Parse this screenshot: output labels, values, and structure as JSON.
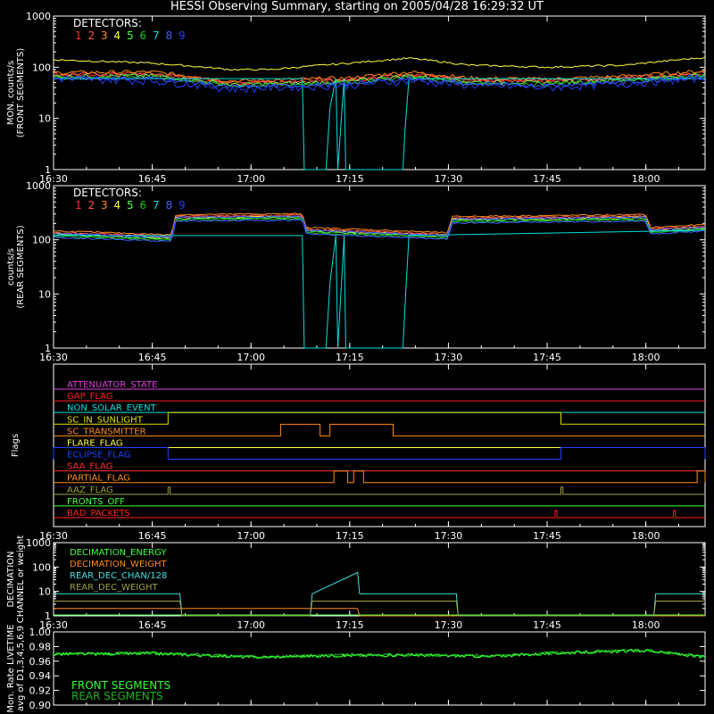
{
  "title": "HESSI Observing Summary, starting on 2005/04/28 16:29:32 UT",
  "colors": {
    "background": "#000000",
    "axes": "#ffffff",
    "det": [
      "#ff3030",
      "#ff5050",
      "#ff8c1a",
      "#ffff40",
      "#50ff50",
      "#20c020",
      "#00e0e0",
      "#4060ff",
      "#2040ff"
    ],
    "flags": {
      "attenuator": "#e040e0",
      "gap": "#ff2020",
      "non_solar": "#00e0e0",
      "sunlight": "#e0e000",
      "transmitter": "#ff8c1a",
      "flare": "#ffff40",
      "eclipse": "#2040ff",
      "saa": "#ff3030",
      "partial": "#ff8c1a",
      "aaz": "#a0a040",
      "fronts_off": "#40ff40",
      "bad_packets": "#ff2020"
    },
    "dec": {
      "energy": "#40ff40",
      "weight": "#ff8c1a",
      "rear_chan": "#40e0e0",
      "rear_weight": "#a0a040"
    },
    "livetime": {
      "front": "#30ff30",
      "rear": "#20b020"
    }
  },
  "chart_data": [
    {
      "id": "front",
      "type": "line",
      "ylabel": [
        "MON. counts/s",
        "(FRONT SEGMENTS)"
      ],
      "yscale": "log",
      "ylim": [
        1,
        1000
      ],
      "yticks": [
        "1",
        "10",
        "100",
        "1000"
      ],
      "xticks": [
        "16:30",
        "16:45",
        "17:00",
        "17:15",
        "17:30",
        "17:45",
        "18:00"
      ],
      "legend_title": "DETECTORS:",
      "legend_items": [
        "1",
        "2",
        "3",
        "4",
        "5",
        "6",
        "7",
        "8",
        "9"
      ],
      "series": [
        {
          "name": "1",
          "x": [
            16.5,
            16.75,
            16.95,
            17.05,
            17.25,
            17.4,
            17.55,
            17.75,
            17.95,
            18.15
          ],
          "y": [
            70,
            72,
            48,
            50,
            55,
            72,
            55,
            52,
            60,
            75
          ]
        },
        {
          "name": "4",
          "x": [
            16.5,
            16.75,
            16.95,
            17.05,
            17.25,
            17.4,
            17.55,
            17.75,
            17.95,
            18.15
          ],
          "y": [
            140,
            120,
            90,
            90,
            120,
            150,
            110,
            100,
            110,
            155
          ]
        },
        {
          "name": "7",
          "x": [
            16.5,
            17.13,
            17.135,
            17.19,
            17.2,
            17.215,
            17.22,
            17.236,
            17.24,
            17.385,
            17.39,
            17.4,
            18.15
          ],
          "y": [
            60,
            60,
            1,
            1,
            16,
            60,
            1,
            60,
            1,
            1,
            6,
            60,
            60
          ]
        },
        {
          "name": "9",
          "x": [
            16.5,
            16.75,
            16.95,
            17.05,
            17.25,
            17.4,
            17.55,
            17.75,
            17.95,
            18.15
          ],
          "y": [
            60,
            55,
            38,
            40,
            45,
            55,
            45,
            40,
            48,
            62
          ]
        }
      ]
    },
    {
      "id": "rear",
      "type": "line",
      "ylabel": [
        "counts/s",
        "(REAR SEGMENTS)"
      ],
      "yscale": "log",
      "ylim": [
        1,
        1000
      ],
      "yticks": [
        "1",
        "10",
        "100",
        "1000"
      ],
      "xticks": [
        "16:30",
        "16:45",
        "17:00",
        "17:15",
        "17:30",
        "17:45",
        "18:00"
      ],
      "legend_title": "DETECTORS:",
      "legend_items": [
        "1",
        "2",
        "3",
        "4",
        "5",
        "6",
        "7",
        "8",
        "9"
      ],
      "series": [
        {
          "name": "1",
          "x": [
            16.5,
            16.8,
            16.81,
            17.13,
            17.14,
            17.5,
            17.51,
            18.0,
            18.01,
            18.15
          ],
          "y": [
            130,
            110,
            260,
            270,
            150,
            120,
            240,
            260,
            150,
            170
          ]
        },
        {
          "name": "7",
          "x": [
            16.5,
            17.13,
            17.135,
            17.19,
            17.2,
            17.215,
            17.22,
            17.236,
            17.24,
            17.385,
            17.39,
            17.4,
            18.15
          ],
          "y": [
            120,
            120,
            1,
            1,
            16,
            120,
            1,
            120,
            1,
            1,
            6,
            120,
            150
          ]
        }
      ]
    },
    {
      "id": "flags",
      "type": "line",
      "ylabel": [
        "Flags"
      ],
      "xticks": [
        "16:30",
        "16:45",
        "17:00",
        "17:15",
        "17:30",
        "17:45",
        "18:00"
      ],
      "flags": [
        {
          "key": "attenuator",
          "label": "ATTENUATOR_STATE"
        },
        {
          "key": "gap",
          "label": "GAP_FLAG"
        },
        {
          "key": "non_solar",
          "label": "NON_SOLAR_EVENT"
        },
        {
          "key": "sunlight",
          "label": "SC_IN_SUNLIGHT",
          "on": [
            [
              16.79,
              17.785
            ]
          ]
        },
        {
          "key": "transmitter",
          "label": "SC_TRANSMITTER",
          "on": [
            [
              17.075,
              17.175
            ],
            [
              17.2,
              17.36
            ]
          ]
        },
        {
          "key": "flare",
          "label": "FLARE_FLAG"
        },
        {
          "key": "eclipse",
          "label": "ECLIPSE_FLAG",
          "on": [
            [
              16.5,
              16.79
            ],
            [
              17.785,
              18.15
            ]
          ]
        },
        {
          "key": "saa",
          "label": "SAA_FLAG"
        },
        {
          "key": "partial",
          "label": "PARTIAL_FLAG",
          "on": [
            [
              17.21,
              17.245
            ],
            [
              17.26,
              17.285
            ],
            [
              18.13,
              18.15
            ]
          ]
        },
        {
          "key": "aaz",
          "label": "AAZ_FLAG",
          "on": [
            [
              16.79,
              16.795
            ],
            [
              17.785,
              17.79
            ]
          ]
        },
        {
          "key": "fronts_off",
          "label": "FRONTS_OFF"
        },
        {
          "key": "bad_packets",
          "label": "BAD_PACKETS",
          "on": [
            [
              17.77,
              17.775
            ],
            [
              18.07,
              18.075
            ]
          ]
        }
      ]
    },
    {
      "id": "decimation",
      "type": "line",
      "ylabel": [
        "DECIMATION",
        "CHANNEL or weight"
      ],
      "yscale": "log",
      "ylim": [
        1,
        1000
      ],
      "yticks": [
        "1",
        "10",
        "100",
        "1000"
      ],
      "xticks": [
        "16:30",
        "16:45",
        "17:00",
        "17:15",
        "17:30",
        "17:45",
        "18:00"
      ],
      "legend_items": [
        "DECIMATION_ENERGY",
        "DECIMATION_WEIGHT",
        "REAR_DEC_CHAN/128",
        "REAR_DEC_WEIGHT"
      ],
      "series": [
        {
          "name": "DECIMATION_ENERGY",
          "x": [
            16.5,
            18.15
          ],
          "y": [
            1,
            1
          ]
        },
        {
          "name": "DECIMATION_WEIGHT",
          "x": [
            16.5,
            17.27,
            17.275,
            18.15
          ],
          "y": [
            2,
            2,
            1,
            1
          ]
        },
        {
          "name": "REAR_DEC_CHAN/128",
          "x": [
            16.5,
            16.82,
            16.825,
            17.15,
            17.155,
            17.27,
            17.275,
            17.52,
            17.525,
            18.02,
            18.025,
            18.15
          ],
          "y": [
            8,
            8,
            1,
            1,
            8,
            60,
            8,
            8,
            1,
            1,
            8,
            8
          ]
        },
        {
          "name": "REAR_DEC_WEIGHT",
          "x": [
            16.5,
            16.82,
            16.825,
            17.15,
            17.155,
            17.52,
            17.525,
            18.02,
            18.025,
            18.15
          ],
          "y": [
            4,
            4,
            1,
            1,
            4,
            4,
            1,
            1,
            4,
            4
          ]
        }
      ]
    },
    {
      "id": "livetime",
      "type": "line",
      "ylabel": [
        "Mon. Rate LIVETIME",
        "avg of D1,3,4,5,6,9"
      ],
      "ylim": [
        0.9,
        1.0
      ],
      "yticks": [
        "0.90",
        "0.92",
        "0.94",
        "0.96",
        "0.98",
        "1.00"
      ],
      "legend_items": [
        "FRONT SEGMENTS",
        "REAR SEGMENTS"
      ],
      "series": [
        {
          "name": "FRONT SEGMENTS",
          "x": [
            16.5,
            16.75,
            17.0,
            17.2,
            17.4,
            17.6,
            17.8,
            18.0,
            18.15
          ],
          "y": [
            0.97,
            0.971,
            0.966,
            0.968,
            0.969,
            0.967,
            0.972,
            0.975,
            0.966
          ]
        }
      ]
    }
  ]
}
